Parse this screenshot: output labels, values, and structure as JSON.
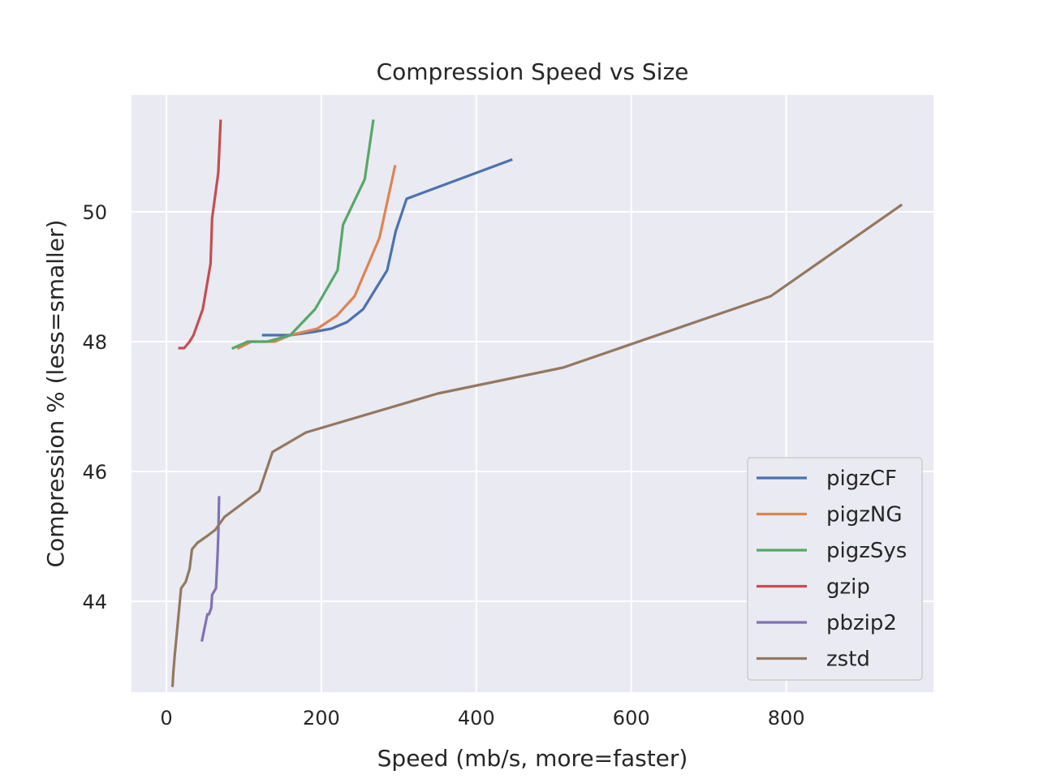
{
  "chart_data": {
    "type": "line",
    "title": "Compression Speed vs Size",
    "xlabel": "Speed (mb/s, more=faster)",
    "ylabel": "Compression % (less=smaller)",
    "xlim": [
      -45,
      990
    ],
    "ylim": [
      42.6,
      51.8
    ],
    "xticks": [
      0,
      200,
      400,
      600,
      800
    ],
    "yticks": [
      44,
      46,
      48,
      50
    ],
    "grid": true,
    "legend_position": "lower-right",
    "series": [
      {
        "name": "pigzCF",
        "color": "#4c72b0",
        "x": [
          125,
          160,
          190,
          213,
          233,
          254,
          285,
          296,
          310,
          445
        ],
        "y": [
          48.1,
          48.1,
          48.15,
          48.2,
          48.3,
          48.5,
          49.1,
          49.7,
          50.2,
          50.8
        ]
      },
      {
        "name": "pigzNG",
        "color": "#dd8452",
        "x": [
          93,
          110,
          140,
          160,
          195,
          220,
          243,
          275,
          295
        ],
        "y": [
          47.9,
          48.0,
          48.0,
          48.1,
          48.2,
          48.4,
          48.7,
          49.6,
          50.7
        ]
      },
      {
        "name": "pigzSys",
        "color": "#55a868",
        "x": [
          86,
          105,
          130,
          160,
          192,
          221,
          228,
          256,
          267
        ],
        "y": [
          47.9,
          48.0,
          48.0,
          48.1,
          48.5,
          49.1,
          49.8,
          50.5,
          51.4
        ]
      },
      {
        "name": "gzip",
        "color": "#c44e52",
        "x": [
          17,
          23,
          30,
          35,
          47,
          57,
          59,
          67,
          70
        ],
        "y": [
          47.9,
          47.9,
          48.0,
          48.1,
          48.5,
          49.2,
          49.9,
          50.6,
          51.4
        ]
      },
      {
        "name": "pbzip2",
        "color": "#8172b3",
        "x": [
          46,
          53,
          55,
          58,
          59,
          64,
          66,
          67,
          68
        ],
        "y": [
          43.4,
          43.8,
          43.8,
          43.9,
          44.1,
          44.2,
          44.7,
          45.0,
          45.6
        ]
      },
      {
        "name": "zstd",
        "color": "#937860",
        "x": [
          8,
          9,
          11,
          15,
          19,
          25,
          30,
          33,
          40,
          52,
          63,
          75,
          120,
          137,
          180,
          350,
          512,
          780,
          948
        ],
        "y": [
          42.7,
          42.9,
          43.2,
          43.7,
          44.2,
          44.3,
          44.5,
          44.8,
          44.9,
          45.0,
          45.1,
          45.3,
          45.7,
          46.3,
          46.6,
          47.2,
          47.6,
          48.7,
          50.1
        ]
      }
    ]
  }
}
